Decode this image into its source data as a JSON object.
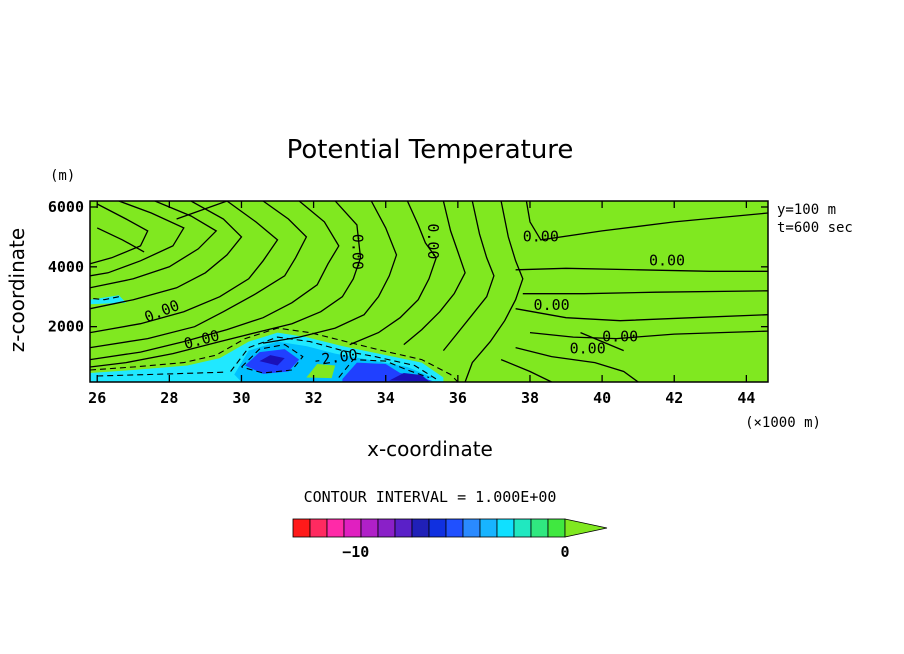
{
  "chart_data": {
    "type": "heatmap",
    "title": "Potential Temperature",
    "xlabel": "x-coordinate",
    "ylabel": "z-coordinate",
    "x_unit": "(×1000 m)",
    "y_unit": "(m)",
    "xlim": [
      25.8,
      44.6
    ],
    "ylim": [
      150,
      6200
    ],
    "x_ticks": [
      26,
      28,
      30,
      32,
      34,
      36,
      38,
      40,
      42,
      44
    ],
    "y_ticks": [
      2000,
      4000,
      6000
    ],
    "info_lines": [
      "y=100 m",
      "t=600 sec"
    ],
    "contour_interval_text": "CONTOUR INTERVAL = 1.000E+00",
    "contour_labels": [
      {
        "text": "0.00",
        "x": 27.8,
        "z": 2500,
        "angle": -22
      },
      {
        "text": "0.00",
        "x": 28.9,
        "z": 1550,
        "angle": -15
      },
      {
        "text": "0.00",
        "x": 33.2,
        "z": 4500,
        "angle": 90
      },
      {
        "text": "0.00",
        "x": 35.3,
        "z": 4850,
        "angle": 90
      },
      {
        "text": "0.00",
        "x": 38.3,
        "z": 5000,
        "angle": 0
      },
      {
        "text": "0.00",
        "x": 41.8,
        "z": 4200,
        "angle": 0
      },
      {
        "text": "0.00",
        "x": 38.6,
        "z": 2700,
        "angle": 0
      },
      {
        "text": "0.00",
        "x": 39.6,
        "z": 1250,
        "angle": 0
      },
      {
        "text": "0.00",
        "x": 40.5,
        "z": 1650,
        "angle": 0
      },
      {
        "text": "-2.00",
        "x": 32.6,
        "z": 950,
        "angle": -8
      }
    ],
    "colorbar": {
      "min": -13,
      "max": 0,
      "tick_labels": [
        {
          "value": -10,
          "text": "−10"
        },
        {
          "value": 0,
          "text": "0"
        }
      ],
      "colors": [
        "#ff1a1a",
        "#ff2a60",
        "#ff2aa8",
        "#e020c0",
        "#b020c8",
        "#8a20c8",
        "#5a20c8",
        "#2020b8",
        "#1030e0",
        "#2050ff",
        "#2a8aff",
        "#18b4ff",
        "#10e0ff",
        "#20e8c0",
        "#30e880",
        "#40e840"
      ],
      "extend_color": "#80e820"
    },
    "colors": {
      "background_field": "#80e820",
      "cold_light": "#20e8ff",
      "cold_mid": "#00c0ff",
      "cold_deep": "#2040ff",
      "cold_core": "#1a10b8"
    }
  }
}
